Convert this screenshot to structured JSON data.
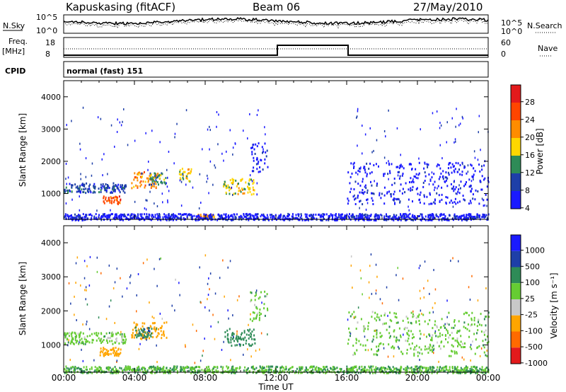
{
  "header": {
    "station": "Kapuskasing (fitACF)",
    "beam": "Beam 06",
    "date": "27/May/2010"
  },
  "top_panels": {
    "nsky_label": "N.Sky",
    "nsky_ticks": [
      "10^5",
      "10^0"
    ],
    "nsearch_label": "N.Search",
    "nsearch_ticks": [
      "10^5",
      "10^0"
    ],
    "freq_label_1": "Freq.",
    "freq_label_2": "[MHz]",
    "freq_ticks": [
      "18",
      "8"
    ],
    "nave_label": "Nave",
    "nave_ticks": [
      "60",
      "0"
    ],
    "cpid_label": "CPID",
    "cpid_value": "normal (fast) 151"
  },
  "power_colorbar": {
    "title": "Power [dB]",
    "ticks": [
      "28",
      "24",
      "20",
      "16",
      "12",
      "8",
      "4"
    ],
    "colors": [
      "#e31a1c",
      "#ff4500",
      "#ff8c00",
      "#ffd700",
      "#2e8b57",
      "#1e3fa8",
      "#1a1aff"
    ]
  },
  "velocity_colorbar": {
    "title": "Velocity [m s⁻¹]",
    "ticks": [
      "1000",
      "500",
      "100",
      "25",
      "-25",
      "-100",
      "-500",
      "-1000"
    ],
    "colors": [
      "#1a1aff",
      "#1e3fa8",
      "#2e8b57",
      "#66cc33",
      "#c8c8c8",
      "#ffa500",
      "#ff6a00",
      "#e31a1c"
    ]
  },
  "chart_data": [
    {
      "type": "heatmap",
      "title": "",
      "xlabel": "Time UT",
      "ylabel": "Slant Range [km]",
      "x_ticks": [
        "00:00",
        "04:00",
        "08:00",
        "12:00",
        "16:00",
        "20:00",
        "00:00"
      ],
      "y_ticks": [
        "1000",
        "2000",
        "3000",
        "4000"
      ],
      "xlim": [
        0,
        24
      ],
      "ylim": [
        200,
        4500
      ],
      "z_label": "Power [dB]",
      "zlim": [
        0,
        30
      ],
      "regions": [
        {
          "t": [
            0,
            3.5
          ],
          "range": [
            1050,
            1350
          ],
          "value": 8
        },
        {
          "t": [
            2.2,
            3.2
          ],
          "range": [
            700,
            950
          ],
          "value": 24
        },
        {
          "t": [
            3.8,
            5.3
          ],
          "range": [
            1200,
            1700
          ],
          "value": 20
        },
        {
          "t": [
            4.8,
            5.8
          ],
          "range": [
            1300,
            1700
          ],
          "value": 12
        },
        {
          "t": [
            6.5,
            7.2
          ],
          "range": [
            1400,
            1800
          ],
          "value": 16
        },
        {
          "t": [
            7.5,
            8.5
          ],
          "range": [
            280,
            380
          ],
          "value": 20
        },
        {
          "t": [
            9.0,
            10.8
          ],
          "range": [
            1000,
            1500
          ],
          "value": 16
        },
        {
          "t": [
            10.5,
            11.5
          ],
          "range": [
            1700,
            2600
          ],
          "value": 4
        },
        {
          "t": [
            16.0,
            24.0
          ],
          "range": [
            700,
            2000
          ],
          "value": 4
        },
        {
          "t": [
            0,
            24
          ],
          "range": [
            200,
            400
          ],
          "value": 4
        }
      ]
    },
    {
      "type": "heatmap",
      "title": "",
      "xlabel": "Time UT",
      "ylabel": "Slant Range [km]",
      "x_ticks": [
        "00:00",
        "04:00",
        "08:00",
        "12:00",
        "16:00",
        "20:00",
        "00:00"
      ],
      "y_ticks": [
        "1000",
        "2000",
        "3000",
        "4000"
      ],
      "xlim": [
        0,
        24
      ],
      "ylim": [
        200,
        4500
      ],
      "z_label": "Velocity [m s⁻¹]",
      "zlim": [
        -1000,
        1000
      ],
      "regions": [
        {
          "t": [
            0,
            3.5
          ],
          "range": [
            1050,
            1400
          ],
          "value": 0
        },
        {
          "t": [
            2.0,
            3.2
          ],
          "range": [
            700,
            950
          ],
          "value": -200
        },
        {
          "t": [
            3.8,
            5.8
          ],
          "range": [
            1200,
            1700
          ],
          "value": -300
        },
        {
          "t": [
            4.0,
            5.0
          ],
          "range": [
            1250,
            1550
          ],
          "value": 80
        },
        {
          "t": [
            9.0,
            10.8
          ],
          "range": [
            1000,
            1500
          ],
          "value": 60
        },
        {
          "t": [
            10.5,
            11.5
          ],
          "range": [
            1700,
            2600
          ],
          "value": 0
        },
        {
          "t": [
            16.0,
            24.0
          ],
          "range": [
            700,
            2000
          ],
          "value": 0
        },
        {
          "t": [
            0,
            24
          ],
          "range": [
            200,
            400
          ],
          "value": 20
        }
      ]
    }
  ]
}
